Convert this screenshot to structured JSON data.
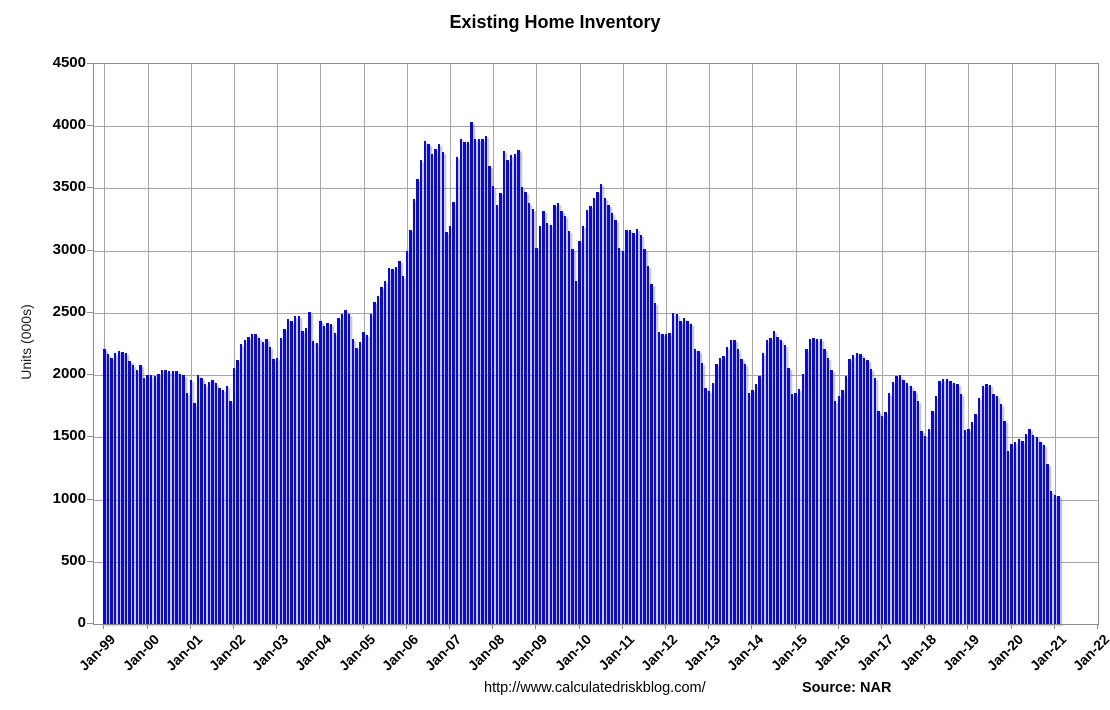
{
  "title": "Existing Home Inventory",
  "y_axis_title": "Units (000s)",
  "footer": {
    "url": "http://www.calculatedriskblog.com/",
    "source": "Source: NAR"
  },
  "colors": {
    "bar": "#0a0ad2",
    "gridline": "#a6a6a6",
    "axis": "#8c8c8c"
  },
  "chart_data": {
    "type": "bar",
    "title": "Existing Home Inventory",
    "xlabel": "",
    "ylabel": "Units (000s)",
    "ylim": [
      0,
      4500
    ],
    "ytick_step": 500,
    "y_tick_labels": [
      "0",
      "500",
      "1000",
      "1500",
      "2000",
      "2500",
      "3000",
      "3500",
      "4000",
      "4500"
    ],
    "x_tick_labels": [
      "Jan-99",
      "Jan-00",
      "Jan-01",
      "Jan-02",
      "Jan-03",
      "Jan-04",
      "Jan-05",
      "Jan-06",
      "Jan-07",
      "Jan-08",
      "Jan-09",
      "Jan-10",
      "Jan-11",
      "Jan-12",
      "Jan-13",
      "Jan-14",
      "Jan-15",
      "Jan-16",
      "Jan-17",
      "Jan-18",
      "Jan-19",
      "Jan-20",
      "Jan-21",
      "Jan-22"
    ],
    "frequency": "monthly",
    "x_start": "Jan-1999",
    "x_end": "Feb-2021",
    "grid": "on",
    "legend": "none",
    "series_name": "Existing Home Inventory (thousands of units, NSA)",
    "years": [
      1999,
      2000,
      2001,
      2002,
      2003,
      2004,
      2005,
      2006,
      2007,
      2008,
      2009,
      2010,
      2011,
      2012,
      2013,
      2014,
      2015,
      2016,
      2017,
      2018,
      2019,
      2020,
      2021
    ],
    "values_by_year": {
      "1999": [
        2210,
        2170,
        2135,
        2175,
        2195,
        2190,
        2180,
        2115,
        2080,
        2045,
        2085,
        1980
      ],
      "2000": [
        2000,
        2005,
        1990,
        2010,
        2040,
        2040,
        2030,
        2030,
        2030,
        2010,
        2005,
        1860
      ],
      "2001": [
        1965,
        1780,
        2005,
        1975,
        1925,
        1945,
        1965,
        1940,
        1900,
        1880,
        1910,
        1790
      ],
      "2002": [
        2060,
        2120,
        2250,
        2280,
        2310,
        2330,
        2330,
        2300,
        2270,
        2290,
        2230,
        2130
      ],
      "2003": [
        2140,
        2300,
        2370,
        2455,
        2435,
        2475,
        2475,
        2355,
        2380,
        2505,
        2275,
        2260
      ],
      "2004": [
        2435,
        2395,
        2420,
        2410,
        2340,
        2460,
        2490,
        2520,
        2490,
        2290,
        2220,
        2270
      ],
      "2005": [
        2345,
        2320,
        2490,
        2585,
        2640,
        2705,
        2760,
        2860,
        2850,
        2870,
        2920,
        2800
      ],
      "2006": [
        3000,
        3165,
        3415,
        3575,
        3730,
        3880,
        3860,
        3780,
        3820,
        3860,
        3790,
        3150
      ],
      "2007": [
        3200,
        3390,
        3750,
        3900,
        3870,
        3870,
        4035,
        3900,
        3895,
        3895,
        3925,
        3680
      ],
      "2008": [
        3520,
        3370,
        3460,
        3805,
        3730,
        3770,
        3780,
        3810,
        3515,
        3470,
        3385,
        3335
      ],
      "2009": [
        3025,
        3200,
        3320,
        3225,
        3210,
        3370,
        3385,
        3320,
        3280,
        3160,
        3010,
        2755
      ],
      "2010": [
        3080,
        3200,
        3330,
        3360,
        3425,
        3470,
        3535,
        3425,
        3365,
        3305,
        3250,
        3025
      ],
      "2011": [
        3000,
        3170,
        3170,
        3145,
        3175,
        3130,
        3015,
        2880,
        2730,
        2580,
        2350,
        2330
      ],
      "2012": [
        2330,
        2340,
        2500,
        2490,
        2435,
        2460,
        2435,
        2410,
        2210,
        2195,
        2100,
        1900
      ],
      "2013": [
        1870,
        1940,
        2090,
        2140,
        2150,
        2230,
        2280,
        2280,
        2210,
        2130,
        2090,
        1860
      ],
      "2014": [
        1880,
        1930,
        1990,
        2180,
        2280,
        2300,
        2355,
        2310,
        2280,
        2240,
        2060,
        1850
      ],
      "2015": [
        1860,
        1890,
        2010,
        2210,
        2290,
        2300,
        2290,
        2290,
        2210,
        2140,
        2040,
        1790
      ],
      "2016": [
        1830,
        1880,
        1990,
        2130,
        2160,
        2180,
        2170,
        2140,
        2120,
        2050,
        1980,
        1710
      ],
      "2017": [
        1670,
        1705,
        1855,
        1945,
        1995,
        2005,
        1965,
        1940,
        1915,
        1875,
        1795,
        1550
      ],
      "2018": [
        1515,
        1565,
        1710,
        1830,
        1955,
        1970,
        1970,
        1955,
        1940,
        1925,
        1850,
        1560
      ],
      "2019": [
        1565,
        1620,
        1685,
        1820,
        1915,
        1925,
        1920,
        1845,
        1835,
        1765,
        1630,
        1390
      ],
      "2020": [
        1445,
        1460,
        1485,
        1470,
        1525,
        1570,
        1520,
        1500,
        1465,
        1440,
        1285,
        1070
      ],
      "2021": [
        1040,
        1030
      ]
    }
  }
}
